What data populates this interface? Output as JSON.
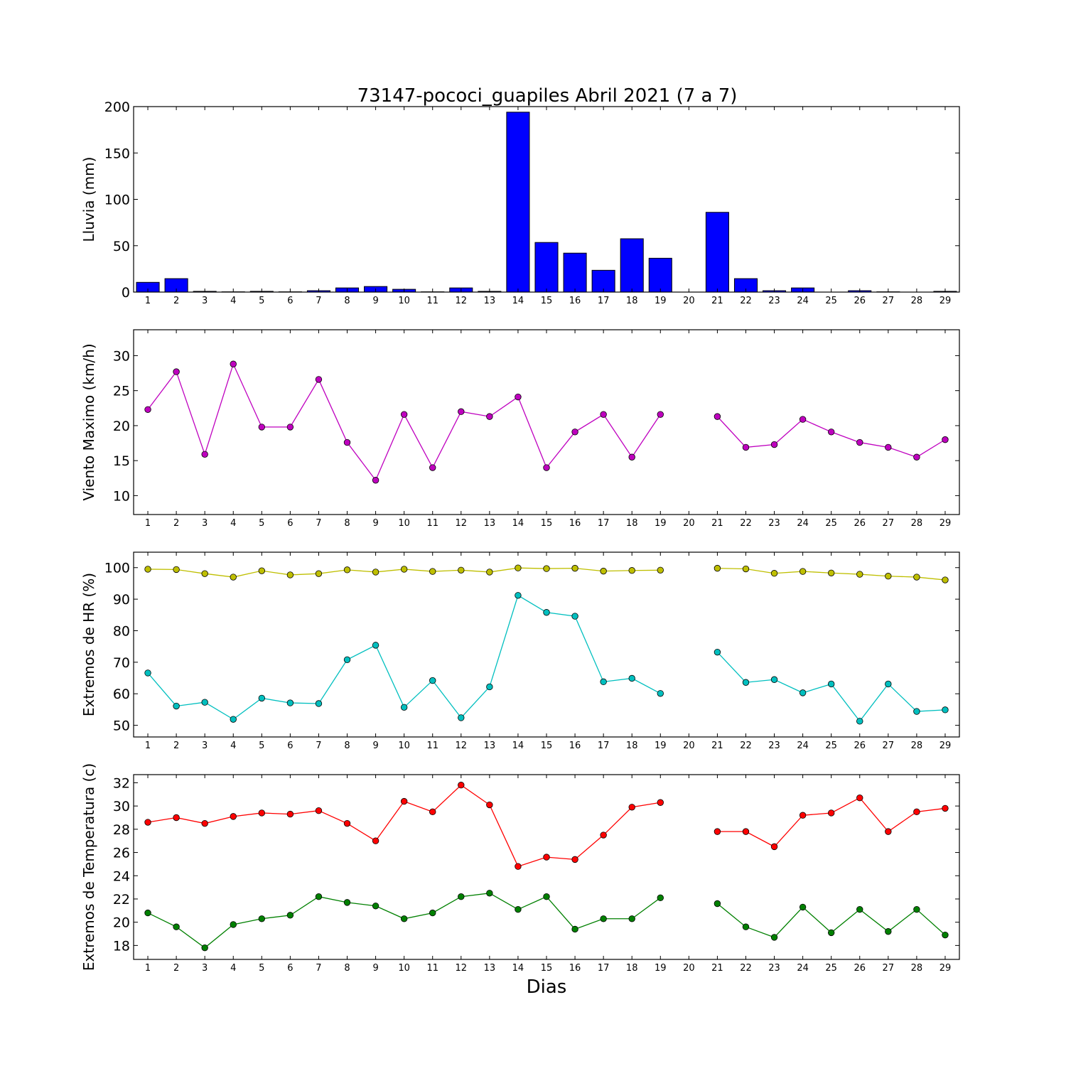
{
  "chart_data": {
    "title": "73147-pococi_guapiles Abril 2021  (7 a 7)",
    "xlabel": "Dias",
    "days": [
      1,
      2,
      3,
      4,
      5,
      6,
      7,
      8,
      9,
      10,
      11,
      12,
      13,
      14,
      15,
      16,
      17,
      18,
      19,
      20,
      21,
      22,
      23,
      24,
      25,
      26,
      27,
      28,
      29
    ],
    "x_tick_labels": [
      "1",
      "2",
      "3",
      "4",
      "5",
      "6",
      "7",
      "8",
      "9",
      "10",
      "11",
      "12",
      "13",
      "14",
      "15",
      "16",
      "17",
      "18",
      "19",
      "20",
      "21",
      "22",
      "23",
      "24",
      "25",
      "26",
      "27",
      "28",
      "29"
    ],
    "panels": [
      {
        "type": "bar",
        "ylabel": "Lluvia (mm)",
        "ylim": [
          0,
          200
        ],
        "yticks": [
          0,
          50,
          100,
          150,
          200
        ],
        "series": [
          {
            "color": "#0000ff",
            "values": [
              10.5,
              14.5,
              0.8,
              0.3,
              0.8,
              0.3,
              1.5,
              4.5,
              6.0,
              3.0,
              0.3,
              4.5,
              0.8,
              194,
              53.5,
              42,
              23.5,
              57.5,
              36.5,
              0,
              86,
              14.5,
              1.5,
              4.5,
              0,
              1.5,
              0.3,
              0,
              0.8
            ]
          }
        ]
      },
      {
        "type": "line",
        "ylabel": "Viento Maximo (km/h)",
        "ylim": [
          7.3,
          33.7
        ],
        "yticks": [
          10,
          15,
          20,
          25,
          30
        ],
        "series": [
          {
            "color": "#bf00bf",
            "values": [
              22.3,
              27.7,
              15.9,
              28.8,
              19.8,
              19.8,
              26.6,
              17.6,
              12.2,
              21.6,
              14.0,
              22.0,
              21.3,
              24.1,
              14.0,
              19.1,
              21.6,
              15.5,
              21.6,
              null,
              21.3,
              16.9,
              17.3,
              20.9,
              19.1,
              17.6,
              16.9,
              15.5,
              18.0
            ]
          }
        ]
      },
      {
        "type": "line",
        "ylabel": "Extremos de HR (%)",
        "ylim": [
          46.3,
          104.9
        ],
        "yticks": [
          50,
          60,
          70,
          80,
          90,
          100
        ],
        "series": [
          {
            "color": "#bfbf00",
            "values": [
              99.5,
              99.4,
              98.1,
              97.0,
              99.0,
              97.7,
              98.1,
              99.3,
              98.6,
              99.5,
              98.8,
              99.2,
              98.6,
              99.9,
              99.7,
              99.8,
              98.9,
              99.1,
              99.2,
              null,
              99.8,
              99.6,
              98.2,
              98.8,
              98.3,
              97.9,
              97.3,
              97.0,
              96.1
            ]
          },
          {
            "color": "#00bfbf",
            "values": [
              66.6,
              56.1,
              57.3,
              51.9,
              58.6,
              57.1,
              56.9,
              70.8,
              75.4,
              55.7,
              64.2,
              52.4,
              62.2,
              91.2,
              85.8,
              84.6,
              63.8,
              64.9,
              60.1,
              null,
              73.2,
              63.6,
              64.5,
              60.3,
              63.1,
              51.3,
              63.1,
              54.4,
              54.9
            ]
          }
        ]
      },
      {
        "type": "line",
        "ylabel": "Extremos de Temperatura (c)",
        "ylim": [
          16.8,
          32.7
        ],
        "yticks": [
          18,
          20,
          22,
          24,
          26,
          28,
          30,
          32
        ],
        "series": [
          {
            "color": "#ff0000",
            "values": [
              28.6,
              29.0,
              28.5,
              29.1,
              29.4,
              29.3,
              29.6,
              28.5,
              27.0,
              30.4,
              29.5,
              31.8,
              30.1,
              24.8,
              25.6,
              25.4,
              27.5,
              29.9,
              30.3,
              null,
              27.8,
              27.8,
              26.5,
              29.2,
              29.4,
              30.7,
              27.8,
              29.5,
              29.8
            ]
          },
          {
            "color": "#008000",
            "values": [
              20.8,
              19.6,
              17.8,
              19.8,
              20.3,
              20.6,
              22.2,
              21.7,
              21.4,
              20.3,
              20.8,
              22.2,
              22.5,
              21.1,
              22.2,
              19.4,
              20.3,
              20.3,
              22.1,
              null,
              21.6,
              19.6,
              18.7,
              21.3,
              19.1,
              21.1,
              19.2,
              21.1,
              18.9
            ]
          }
        ]
      }
    ]
  }
}
